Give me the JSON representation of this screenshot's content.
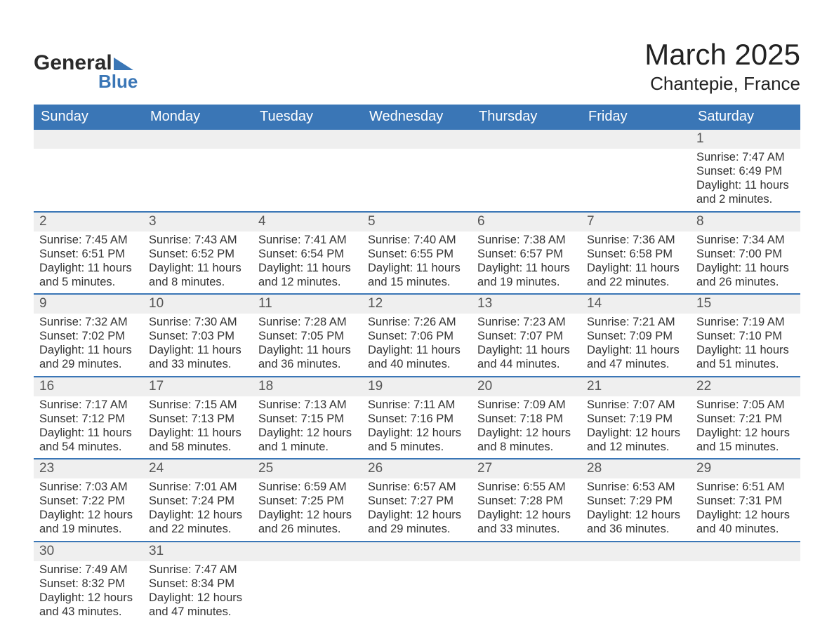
{
  "logo": {
    "word1": "General",
    "word2": "Blue",
    "triangle_color": "#3a76b6",
    "text_color": "#2b2b2b"
  },
  "title": "March 2025",
  "location": "Chantepie, France",
  "colors": {
    "header_bg": "#3a76b6",
    "header_text": "#ffffff",
    "row_stripe": "#efefef",
    "row_divider": "#3a76b6",
    "body_text": "#333333",
    "page_bg": "#ffffff"
  },
  "weekdays": [
    "Sunday",
    "Monday",
    "Tuesday",
    "Wednesday",
    "Thursday",
    "Friday",
    "Saturday"
  ],
  "weeks": [
    [
      null,
      null,
      null,
      null,
      null,
      null,
      {
        "day": "1",
        "sunrise": "Sunrise: 7:47 AM",
        "sunset": "Sunset: 6:49 PM",
        "daylight": "Daylight: 11 hours and 2 minutes."
      }
    ],
    [
      {
        "day": "2",
        "sunrise": "Sunrise: 7:45 AM",
        "sunset": "Sunset: 6:51 PM",
        "daylight": "Daylight: 11 hours and 5 minutes."
      },
      {
        "day": "3",
        "sunrise": "Sunrise: 7:43 AM",
        "sunset": "Sunset: 6:52 PM",
        "daylight": "Daylight: 11 hours and 8 minutes."
      },
      {
        "day": "4",
        "sunrise": "Sunrise: 7:41 AM",
        "sunset": "Sunset: 6:54 PM",
        "daylight": "Daylight: 11 hours and 12 minutes."
      },
      {
        "day": "5",
        "sunrise": "Sunrise: 7:40 AM",
        "sunset": "Sunset: 6:55 PM",
        "daylight": "Daylight: 11 hours and 15 minutes."
      },
      {
        "day": "6",
        "sunrise": "Sunrise: 7:38 AM",
        "sunset": "Sunset: 6:57 PM",
        "daylight": "Daylight: 11 hours and 19 minutes."
      },
      {
        "day": "7",
        "sunrise": "Sunrise: 7:36 AM",
        "sunset": "Sunset: 6:58 PM",
        "daylight": "Daylight: 11 hours and 22 minutes."
      },
      {
        "day": "8",
        "sunrise": "Sunrise: 7:34 AM",
        "sunset": "Sunset: 7:00 PM",
        "daylight": "Daylight: 11 hours and 26 minutes."
      }
    ],
    [
      {
        "day": "9",
        "sunrise": "Sunrise: 7:32 AM",
        "sunset": "Sunset: 7:02 PM",
        "daylight": "Daylight: 11 hours and 29 minutes."
      },
      {
        "day": "10",
        "sunrise": "Sunrise: 7:30 AM",
        "sunset": "Sunset: 7:03 PM",
        "daylight": "Daylight: 11 hours and 33 minutes."
      },
      {
        "day": "11",
        "sunrise": "Sunrise: 7:28 AM",
        "sunset": "Sunset: 7:05 PM",
        "daylight": "Daylight: 11 hours and 36 minutes."
      },
      {
        "day": "12",
        "sunrise": "Sunrise: 7:26 AM",
        "sunset": "Sunset: 7:06 PM",
        "daylight": "Daylight: 11 hours and 40 minutes."
      },
      {
        "day": "13",
        "sunrise": "Sunrise: 7:23 AM",
        "sunset": "Sunset: 7:07 PM",
        "daylight": "Daylight: 11 hours and 44 minutes."
      },
      {
        "day": "14",
        "sunrise": "Sunrise: 7:21 AM",
        "sunset": "Sunset: 7:09 PM",
        "daylight": "Daylight: 11 hours and 47 minutes."
      },
      {
        "day": "15",
        "sunrise": "Sunrise: 7:19 AM",
        "sunset": "Sunset: 7:10 PM",
        "daylight": "Daylight: 11 hours and 51 minutes."
      }
    ],
    [
      {
        "day": "16",
        "sunrise": "Sunrise: 7:17 AM",
        "sunset": "Sunset: 7:12 PM",
        "daylight": "Daylight: 11 hours and 54 minutes."
      },
      {
        "day": "17",
        "sunrise": "Sunrise: 7:15 AM",
        "sunset": "Sunset: 7:13 PM",
        "daylight": "Daylight: 11 hours and 58 minutes."
      },
      {
        "day": "18",
        "sunrise": "Sunrise: 7:13 AM",
        "sunset": "Sunset: 7:15 PM",
        "daylight": "Daylight: 12 hours and 1 minute."
      },
      {
        "day": "19",
        "sunrise": "Sunrise: 7:11 AM",
        "sunset": "Sunset: 7:16 PM",
        "daylight": "Daylight: 12 hours and 5 minutes."
      },
      {
        "day": "20",
        "sunrise": "Sunrise: 7:09 AM",
        "sunset": "Sunset: 7:18 PM",
        "daylight": "Daylight: 12 hours and 8 minutes."
      },
      {
        "day": "21",
        "sunrise": "Sunrise: 7:07 AM",
        "sunset": "Sunset: 7:19 PM",
        "daylight": "Daylight: 12 hours and 12 minutes."
      },
      {
        "day": "22",
        "sunrise": "Sunrise: 7:05 AM",
        "sunset": "Sunset: 7:21 PM",
        "daylight": "Daylight: 12 hours and 15 minutes."
      }
    ],
    [
      {
        "day": "23",
        "sunrise": "Sunrise: 7:03 AM",
        "sunset": "Sunset: 7:22 PM",
        "daylight": "Daylight: 12 hours and 19 minutes."
      },
      {
        "day": "24",
        "sunrise": "Sunrise: 7:01 AM",
        "sunset": "Sunset: 7:24 PM",
        "daylight": "Daylight: 12 hours and 22 minutes."
      },
      {
        "day": "25",
        "sunrise": "Sunrise: 6:59 AM",
        "sunset": "Sunset: 7:25 PM",
        "daylight": "Daylight: 12 hours and 26 minutes."
      },
      {
        "day": "26",
        "sunrise": "Sunrise: 6:57 AM",
        "sunset": "Sunset: 7:27 PM",
        "daylight": "Daylight: 12 hours and 29 minutes."
      },
      {
        "day": "27",
        "sunrise": "Sunrise: 6:55 AM",
        "sunset": "Sunset: 7:28 PM",
        "daylight": "Daylight: 12 hours and 33 minutes."
      },
      {
        "day": "28",
        "sunrise": "Sunrise: 6:53 AM",
        "sunset": "Sunset: 7:29 PM",
        "daylight": "Daylight: 12 hours and 36 minutes."
      },
      {
        "day": "29",
        "sunrise": "Sunrise: 6:51 AM",
        "sunset": "Sunset: 7:31 PM",
        "daylight": "Daylight: 12 hours and 40 minutes."
      }
    ],
    [
      {
        "day": "30",
        "sunrise": "Sunrise: 7:49 AM",
        "sunset": "Sunset: 8:32 PM",
        "daylight": "Daylight: 12 hours and 43 minutes."
      },
      {
        "day": "31",
        "sunrise": "Sunrise: 7:47 AM",
        "sunset": "Sunset: 8:34 PM",
        "daylight": "Daylight: 12 hours and 47 minutes."
      },
      null,
      null,
      null,
      null,
      null
    ]
  ]
}
